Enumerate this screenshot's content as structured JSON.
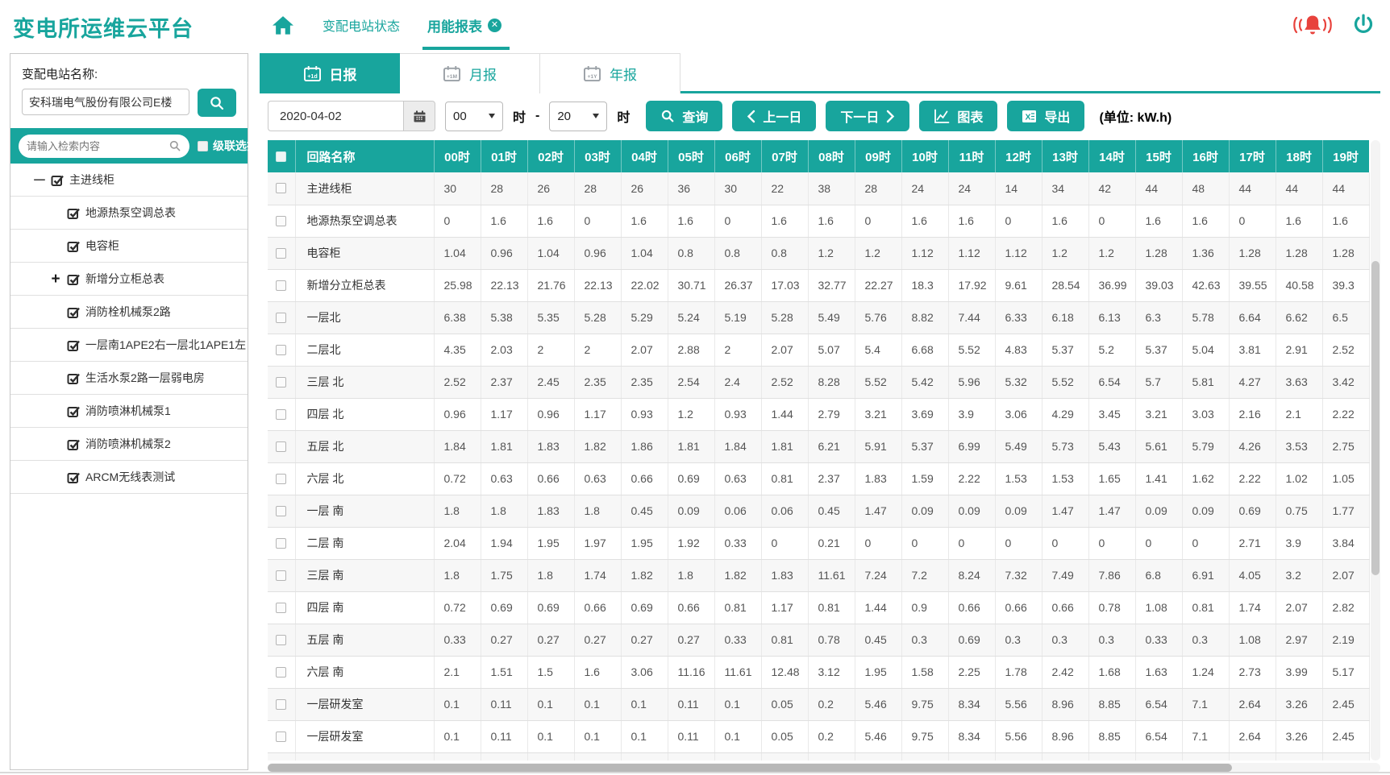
{
  "app": {
    "title": "变电所运维云平台"
  },
  "header": {
    "tabs": [
      {
        "label": "变配电站状态",
        "active": false
      },
      {
        "label": "用能报表",
        "active": true
      }
    ]
  },
  "sidebar": {
    "station_label": "变配电站名称:",
    "station_value": "安科瑞电气股份有限公司E楼",
    "search_placeholder": "请输入检索内容",
    "cascade_label": "级联选择",
    "tree": [
      {
        "label": "主进线柜",
        "level": 0,
        "expander": "minus"
      },
      {
        "label": "地源热泵空调总表",
        "level": 1,
        "expander": "none"
      },
      {
        "label": "电容柜",
        "level": 1,
        "expander": "none"
      },
      {
        "label": "新增分立柜总表",
        "level": 1,
        "expander": "plus"
      },
      {
        "label": "消防栓机械泵2路",
        "level": 1,
        "expander": "none"
      },
      {
        "label": "一层南1APE2右一层北1APE1左",
        "level": 1,
        "expander": "none"
      },
      {
        "label": "生活水泵2路一层弱电房",
        "level": 1,
        "expander": "none"
      },
      {
        "label": "消防喷淋机械泵1",
        "level": 1,
        "expander": "none"
      },
      {
        "label": "消防喷淋机械泵2",
        "level": 1,
        "expander": "none"
      },
      {
        "label": "ARCM无线表测试",
        "level": 1,
        "expander": "none"
      }
    ]
  },
  "report_tabs": [
    {
      "label": "日报",
      "badge": "+1d",
      "active": true
    },
    {
      "label": "月报",
      "badge": "+1M",
      "active": false
    },
    {
      "label": "年报",
      "badge": "+1Y",
      "active": false
    }
  ],
  "toolbar": {
    "date": "2020-04-02",
    "hour_from": "00",
    "hour_to": "20",
    "hour_suffix": "时",
    "dash": "-",
    "query_label": "查询",
    "prev_day_label": "上一日",
    "next_day_label": "下一日",
    "chart_label": "图表",
    "export_label": "导出",
    "unit": "(单位: kW.h)"
  },
  "table": {
    "name_header": "回路名称",
    "hour_headers": [
      "00时",
      "01时",
      "02时",
      "03时",
      "04时",
      "05时",
      "06时",
      "07时",
      "08时",
      "09时",
      "10时",
      "11时",
      "12时",
      "13时",
      "14时",
      "15时",
      "16时",
      "17时",
      "18时",
      "19时"
    ],
    "rows": [
      {
        "name": "主进线柜",
        "values": [
          "30",
          "28",
          "26",
          "28",
          "26",
          "36",
          "30",
          "22",
          "38",
          "28",
          "24",
          "24",
          "14",
          "34",
          "42",
          "44",
          "48",
          "44",
          "44",
          "44"
        ]
      },
      {
        "name": "地源热泵空调总表",
        "values": [
          "0",
          "1.6",
          "1.6",
          "0",
          "1.6",
          "1.6",
          "0",
          "1.6",
          "1.6",
          "0",
          "1.6",
          "1.6",
          "0",
          "1.6",
          "0",
          "1.6",
          "1.6",
          "0",
          "1.6",
          "1.6"
        ]
      },
      {
        "name": "电容柜",
        "values": [
          "1.04",
          "0.96",
          "1.04",
          "0.96",
          "1.04",
          "0.8",
          "0.8",
          "0.8",
          "1.2",
          "1.2",
          "1.12",
          "1.12",
          "1.12",
          "1.2",
          "1.2",
          "1.28",
          "1.36",
          "1.28",
          "1.28",
          "1.28"
        ]
      },
      {
        "name": "新增分立柜总表",
        "values": [
          "25.98",
          "22.13",
          "21.76",
          "22.13",
          "22.02",
          "30.71",
          "26.37",
          "17.03",
          "32.77",
          "22.27",
          "18.3",
          "17.92",
          "9.61",
          "28.54",
          "36.99",
          "39.03",
          "42.63",
          "39.55",
          "40.58",
          "39.3"
        ]
      },
      {
        "name": "一层北",
        "values": [
          "6.38",
          "5.38",
          "5.35",
          "5.28",
          "5.29",
          "5.24",
          "5.19",
          "5.28",
          "5.49",
          "5.76",
          "8.82",
          "7.44",
          "6.33",
          "6.18",
          "6.13",
          "6.3",
          "5.78",
          "6.64",
          "6.62",
          "6.5"
        ]
      },
      {
        "name": "二层北",
        "values": [
          "4.35",
          "2.03",
          "2",
          "2",
          "2.07",
          "2.88",
          "2",
          "2.07",
          "5.07",
          "5.4",
          "6.68",
          "5.52",
          "4.83",
          "5.37",
          "5.2",
          "5.37",
          "5.04",
          "3.81",
          "2.91",
          "2.52"
        ]
      },
      {
        "name": "三层 北",
        "values": [
          "2.52",
          "2.37",
          "2.45",
          "2.35",
          "2.35",
          "2.54",
          "2.4",
          "2.52",
          "8.28",
          "5.52",
          "5.42",
          "5.96",
          "5.32",
          "5.52",
          "6.54",
          "5.7",
          "5.81",
          "4.27",
          "3.63",
          "3.42"
        ]
      },
      {
        "name": "四层 北",
        "values": [
          "0.96",
          "1.17",
          "0.96",
          "1.17",
          "0.93",
          "1.2",
          "0.93",
          "1.44",
          "2.79",
          "3.21",
          "3.69",
          "3.9",
          "3.06",
          "4.29",
          "3.45",
          "3.21",
          "3.03",
          "2.16",
          "2.1",
          "2.22"
        ]
      },
      {
        "name": "五层 北",
        "values": [
          "1.84",
          "1.81",
          "1.83",
          "1.82",
          "1.86",
          "1.81",
          "1.84",
          "1.81",
          "6.21",
          "5.91",
          "5.37",
          "6.99",
          "5.49",
          "5.73",
          "5.43",
          "5.61",
          "5.79",
          "4.26",
          "3.53",
          "2.75"
        ]
      },
      {
        "name": "六层 北",
        "values": [
          "0.72",
          "0.63",
          "0.66",
          "0.63",
          "0.66",
          "0.69",
          "0.63",
          "0.81",
          "2.37",
          "1.83",
          "1.59",
          "2.22",
          "1.53",
          "1.53",
          "1.65",
          "1.41",
          "1.62",
          "2.22",
          "1.02",
          "1.05"
        ]
      },
      {
        "name": "一层 南",
        "values": [
          "1.8",
          "1.8",
          "1.83",
          "1.8",
          "0.45",
          "0.09",
          "0.06",
          "0.06",
          "0.45",
          "1.47",
          "0.09",
          "0.09",
          "0.09",
          "1.47",
          "1.47",
          "0.09",
          "0.09",
          "0.69",
          "0.75",
          "1.77"
        ]
      },
      {
        "name": "二层 南",
        "values": [
          "2.04",
          "1.94",
          "1.95",
          "1.97",
          "1.95",
          "1.92",
          "0.33",
          "0",
          "0.21",
          "0",
          "0",
          "0",
          "0",
          "0",
          "0",
          "0",
          "0",
          "2.71",
          "3.9",
          "3.84"
        ]
      },
      {
        "name": "三层 南",
        "values": [
          "1.8",
          "1.75",
          "1.8",
          "1.74",
          "1.82",
          "1.8",
          "1.82",
          "1.83",
          "11.61",
          "7.24",
          "7.2",
          "8.24",
          "7.32",
          "7.49",
          "7.86",
          "6.8",
          "6.91",
          "4.05",
          "3.2",
          "2.07"
        ]
      },
      {
        "name": "四层 南",
        "values": [
          "0.72",
          "0.69",
          "0.69",
          "0.66",
          "0.69",
          "0.66",
          "0.81",
          "1.17",
          "0.81",
          "1.44",
          "0.9",
          "0.66",
          "0.66",
          "0.66",
          "0.78",
          "1.08",
          "0.81",
          "1.74",
          "2.07",
          "2.82"
        ]
      },
      {
        "name": "五层 南",
        "values": [
          "0.33",
          "0.27",
          "0.27",
          "0.27",
          "0.27",
          "0.27",
          "0.33",
          "0.81",
          "0.78",
          "0.45",
          "0.3",
          "0.69",
          "0.3",
          "0.3",
          "0.3",
          "0.33",
          "0.3",
          "1.08",
          "2.97",
          "2.19"
        ]
      },
      {
        "name": "六层 南",
        "values": [
          "2.1",
          "1.51",
          "1.5",
          "1.6",
          "3.06",
          "11.16",
          "11.61",
          "12.48",
          "3.12",
          "1.95",
          "1.58",
          "2.25",
          "1.78",
          "2.42",
          "1.68",
          "1.63",
          "1.24",
          "2.73",
          "3.99",
          "5.17"
        ]
      },
      {
        "name": "一层研发室",
        "values": [
          "0.1",
          "0.11",
          "0.1",
          "0.1",
          "0.1",
          "0.11",
          "0.1",
          "0.05",
          "0.2",
          "5.46",
          "9.75",
          "8.34",
          "5.56",
          "8.96",
          "8.85",
          "6.54",
          "7.1",
          "2.64",
          "3.26",
          "2.45"
        ]
      },
      {
        "name": "一层研发室",
        "values": [
          "0.1",
          "0.11",
          "0.1",
          "0.1",
          "0.1",
          "0.11",
          "0.1",
          "0.05",
          "0.2",
          "5.46",
          "9.75",
          "8.34",
          "5.56",
          "8.96",
          "8.85",
          "6.54",
          "7.1",
          "2.64",
          "3.26",
          "2.45"
        ]
      }
    ]
  }
}
